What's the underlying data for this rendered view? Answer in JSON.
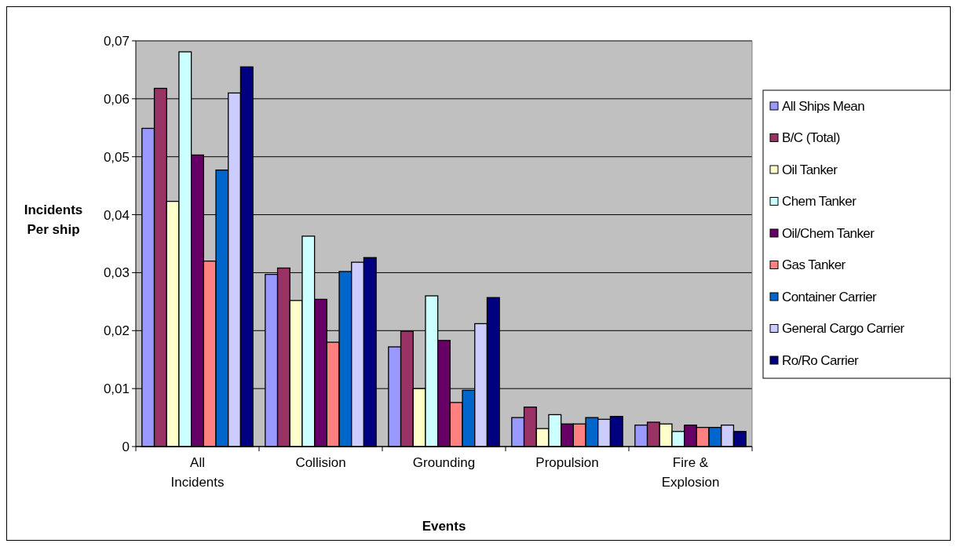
{
  "chart_data": {
    "type": "bar",
    "xlabel": "Events",
    "ylabel": "Incidents Per ship",
    "categories": [
      "All Incidents",
      "Collision",
      "Grounding",
      "Propulsion",
      "Fire & Explosion"
    ],
    "series": [
      {
        "name": "All Ships Mean",
        "color": "#9999ff",
        "values": [
          0.0549,
          0.0297,
          0.0172,
          0.005,
          0.0037
        ]
      },
      {
        "name": "B/C (Total)",
        "color": "#993366",
        "values": [
          0.0618,
          0.0308,
          0.0199,
          0.0068,
          0.0042
        ]
      },
      {
        "name": "Oil Tanker",
        "color": "#ffffcc",
        "values": [
          0.0423,
          0.0252,
          0.01,
          0.0031,
          0.0039
        ]
      },
      {
        "name": "Chem Tanker",
        "color": "#ccffff",
        "values": [
          0.0681,
          0.0363,
          0.026,
          0.0055,
          0.0026
        ]
      },
      {
        "name": "Oil/Chem Tanker",
        "color": "#660066",
        "values": [
          0.0503,
          0.0254,
          0.0183,
          0.0039,
          0.0037
        ]
      },
      {
        "name": "Gas Tanker",
        "color": "#ff8080",
        "values": [
          0.032,
          0.018,
          0.0076,
          0.0039,
          0.0033
        ]
      },
      {
        "name": "Container Carrier",
        "color": "#0066cc",
        "values": [
          0.0477,
          0.0302,
          0.0097,
          0.005,
          0.0033
        ]
      },
      {
        "name": "General Cargo Carrier",
        "color": "#ccccff",
        "values": [
          0.061,
          0.0318,
          0.0212,
          0.0047,
          0.0037
        ]
      },
      {
        "name": "Ro/Ro Carrier",
        "color": "#000080",
        "values": [
          0.0655,
          0.0326,
          0.0257,
          0.0052,
          0.0026
        ]
      }
    ],
    "ylim": [
      0,
      0.07
    ],
    "yticks": [
      {
        "value": 0,
        "label": "0"
      },
      {
        "value": 0.01,
        "label": "0,01"
      },
      {
        "value": 0.02,
        "label": "0,02"
      },
      {
        "value": 0.03,
        "label": "0,03"
      },
      {
        "value": 0.04,
        "label": "0,04"
      },
      {
        "value": 0.05,
        "label": "0,05"
      },
      {
        "value": 0.06,
        "label": "0,06"
      },
      {
        "value": 0.07,
        "label": "0,07"
      }
    ],
    "grid": "y",
    "legend": "right"
  }
}
